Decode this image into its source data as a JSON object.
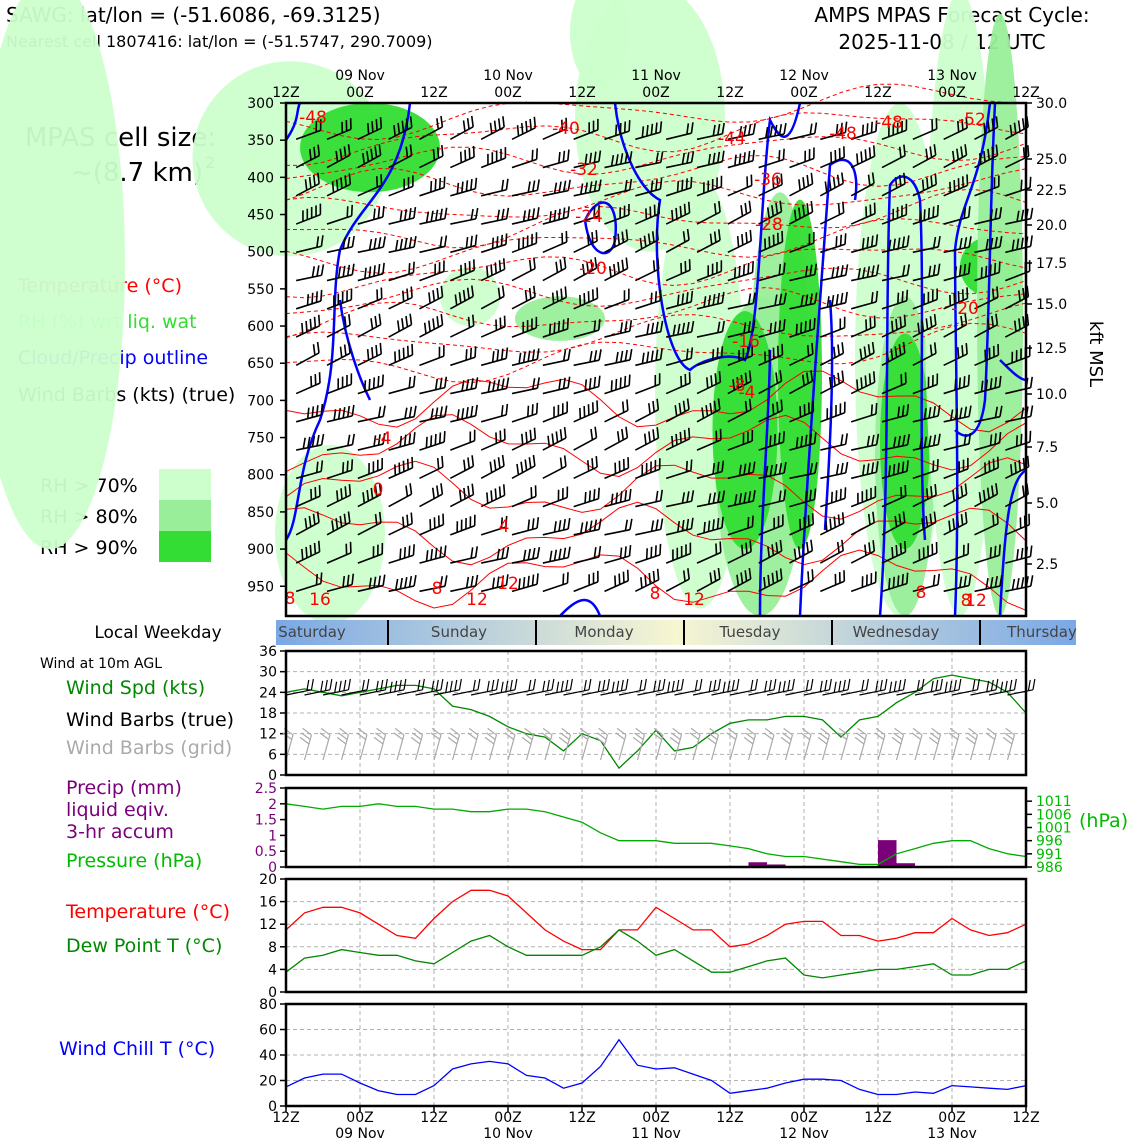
{
  "header": {
    "station_line": "SAWG: lat/lon = (-51.6086, -69.3125)",
    "cell_line": "Nearest cell 1807416: lat/lon = (-51.5747, 290.7009)",
    "cycle_line1": "AMPS MPAS Forecast Cycle:",
    "cycle_line2": "2025-11-08 / 12 UTC"
  },
  "cell_size": {
    "label": "MPAS cell size:",
    "value": "~(8.7 km)",
    "exponent": "2"
  },
  "legend_main": [
    {
      "text": "Temperature (°C)",
      "color": "#ff0000"
    },
    {
      "text": "RH (%) wrt liq. wat",
      "color": "#33dd33"
    },
    {
      "text": "Cloud/Precip outline",
      "color": "#0000ff"
    },
    {
      "text": "Wind Barbs (kts) (true)",
      "color": "#000000"
    }
  ],
  "rh_legend": [
    {
      "text": "RH > 70%",
      "color": "#ccffcc"
    },
    {
      "text": "RH > 80%",
      "color": "#99ee99"
    },
    {
      "text": "RH > 90%",
      "color": "#33dd33"
    }
  ],
  "time_axis": {
    "hours": [
      "12Z",
      "00Z",
      "12Z",
      "00Z",
      "12Z",
      "00Z",
      "12Z",
      "00Z",
      "12Z",
      "00Z",
      "12Z"
    ],
    "dates": [
      "09 Nov",
      "10 Nov",
      "11 Nov",
      "12 Nov",
      "13 Nov"
    ]
  },
  "weekday": {
    "title": "Local Weekday",
    "days": [
      "Saturday",
      "Sunday",
      "Monday",
      "Tuesday",
      "Wednesday",
      "Thursday"
    ]
  },
  "panel_labels": {
    "wind_header": "Wind at 10m AGL",
    "wind_spd": "Wind Spd (kts)",
    "wind_barbs_true": "Wind Barbs (true)",
    "wind_barbs_grid": "Wind Barbs (grid)",
    "precip1": "Precip (mm)",
    "precip2": "liquid eqiv.",
    "precip3": "3-hr accum",
    "pressure": "Pressure (hPa)",
    "pressure_unit": "(hPa)",
    "temp": "Temperature (°C)",
    "dewpoint": "Dew Point T (°C)",
    "windchill": "Wind Chill T (°C)",
    "kft": "kft MSL"
  },
  "chart_data": [
    {
      "type": "heatmap",
      "panel": "cross-section",
      "x_range_hours": [
        0,
        120
      ],
      "y_axis_left": {
        "label": "pressure (hPa)",
        "ticks": [
          300,
          350,
          400,
          450,
          500,
          550,
          600,
          650,
          700,
          750,
          800,
          850,
          900,
          950
        ],
        "range": [
          300,
          990
        ]
      },
      "y_axis_right": {
        "label": "kft MSL",
        "ticks": [
          "30.0",
          "25.0",
          "22.5",
          "20.0",
          "17.5",
          "15.0",
          "12.5",
          "10.0",
          "7.5",
          "5.0",
          "2.5"
        ]
      },
      "temperature_contour_labels": [
        "-48",
        "-40",
        "-44",
        "-48",
        "-48",
        "-52",
        "-32",
        "-36",
        "-24",
        "-28",
        "-20",
        "-20",
        "-16",
        "-4",
        "-8",
        "-4",
        "0",
        "4",
        "8",
        "8",
        "12",
        "16",
        "12",
        "8",
        "12",
        "8",
        "8",
        "12"
      ],
      "legend": [
        "Temperature (°C)",
        "RH (%) wrt liq. wat",
        "Cloud/Precip outline",
        "Wind Barbs (kts) (true)"
      ]
    },
    {
      "type": "line",
      "panel": "wind",
      "series": [
        {
          "name": "Wind Spd (kts)",
          "color": "#008800",
          "x": [
            0,
            3,
            6,
            9,
            12,
            15,
            18,
            21,
            24,
            27,
            30,
            33,
            36,
            39,
            42,
            45,
            48,
            51,
            54,
            57,
            60,
            63,
            66,
            69,
            72,
            75,
            78,
            81,
            84,
            87,
            90,
            93,
            96,
            99,
            102,
            105,
            108,
            111,
            114,
            117,
            120
          ],
          "values": [
            24,
            25,
            24,
            23,
            24,
            25,
            26,
            26,
            25,
            20,
            19,
            17,
            14,
            12,
            11,
            7,
            12,
            10,
            2,
            7,
            13,
            7,
            8,
            12,
            15,
            16,
            16,
            17,
            17,
            16,
            11,
            16,
            17,
            21,
            24,
            28,
            29,
            28,
            27,
            24,
            18
          ]
        }
      ],
      "ylim": [
        0,
        36
      ],
      "yticks": [
        0,
        6,
        12,
        18,
        24,
        30,
        36
      ]
    },
    {
      "type": "bar",
      "panel": "precip/pressure",
      "series": [
        {
          "name": "Precip (mm)",
          "color": "#7a007a",
          "x": [
            75,
            78,
            96,
            99
          ],
          "values": [
            0.15,
            0.08,
            0.85,
            0.12
          ]
        },
        {
          "name": "Pressure (hPa)",
          "color": "#00aa00",
          "x": [
            0,
            3,
            6,
            9,
            12,
            15,
            18,
            21,
            24,
            27,
            30,
            33,
            36,
            39,
            42,
            45,
            48,
            51,
            54,
            57,
            60,
            63,
            66,
            69,
            72,
            75,
            78,
            81,
            84,
            87,
            90,
            93,
            96,
            99,
            102,
            105,
            108,
            111,
            114,
            117,
            120
          ],
          "values": [
            1010,
            1009,
            1008,
            1009,
            1009,
            1010,
            1009,
            1009,
            1008,
            1008,
            1007,
            1007,
            1008,
            1008,
            1007,
            1005,
            1003,
            999,
            996,
            996,
            996,
            995,
            995,
            995,
            994,
            993,
            991,
            990,
            990,
            989,
            988,
            987,
            987,
            991,
            993,
            995,
            996,
            996,
            993,
            991,
            990
          ]
        }
      ],
      "ylim_precip": [
        0,
        2.5
      ],
      "yticks_precip": [
        "0",
        "0.5",
        "1.0",
        "1.5",
        "2.0",
        "2.5"
      ],
      "ylim_pressure": [
        986,
        1016
      ],
      "yticks_pressure": [
        "986",
        "991",
        "996",
        "1001",
        "1006",
        "1011"
      ]
    },
    {
      "type": "line",
      "panel": "temperature",
      "series": [
        {
          "name": "Temperature (°C)",
          "color": "#ff0000",
          "x": [
            0,
            3,
            6,
            9,
            12,
            15,
            18,
            21,
            24,
            27,
            30,
            33,
            36,
            39,
            42,
            45,
            48,
            51,
            54,
            57,
            60,
            63,
            66,
            69,
            72,
            75,
            78,
            81,
            84,
            87,
            90,
            93,
            96,
            99,
            102,
            105,
            108,
            111,
            114,
            117,
            120
          ],
          "values": [
            11,
            14,
            15,
            15,
            14,
            12,
            10,
            9.5,
            13,
            16,
            18,
            18,
            17,
            14,
            11,
            9,
            7.5,
            7.5,
            11,
            11,
            15,
            13,
            11,
            11,
            8,
            8.5,
            10,
            12,
            12.5,
            12.5,
            10,
            10,
            9,
            9.5,
            10.5,
            10.5,
            13,
            11,
            10,
            10.5,
            12
          ]
        },
        {
          "name": "Dew Point T (°C)",
          "color": "#008800",
          "x": [
            0,
            3,
            6,
            9,
            12,
            15,
            18,
            21,
            24,
            27,
            30,
            33,
            36,
            39,
            42,
            45,
            48,
            51,
            54,
            57,
            60,
            63,
            66,
            69,
            72,
            75,
            78,
            81,
            84,
            87,
            90,
            93,
            96,
            99,
            102,
            105,
            108,
            111,
            114,
            117,
            120
          ],
          "values": [
            3.5,
            6,
            6.5,
            7.5,
            7,
            6.5,
            6.5,
            5.5,
            5,
            7,
            9,
            10,
            8,
            6.5,
            6.5,
            6.5,
            6.5,
            8,
            11,
            9,
            6.5,
            7.5,
            5.5,
            3.5,
            3.5,
            4.5,
            5.5,
            6,
            3,
            2.5,
            3,
            3.5,
            4,
            4,
            4.5,
            5,
            3,
            3,
            4,
            4,
            5.5
          ]
        }
      ],
      "ylim": [
        0,
        20
      ],
      "yticks": [
        0,
        4,
        8,
        12,
        16,
        20
      ]
    },
    {
      "type": "line",
      "panel": "windchill",
      "series": [
        {
          "name": "Wind Chill T (°C)",
          "color": "#0000ff",
          "x": [
            0,
            3,
            6,
            9,
            12,
            15,
            18,
            21,
            24,
            27,
            30,
            33,
            36,
            39,
            42,
            45,
            48,
            51,
            54,
            57,
            60,
            63,
            66,
            69,
            72,
            75,
            78,
            81,
            84,
            87,
            90,
            93,
            96,
            99,
            102,
            105,
            108,
            111,
            114,
            117,
            120
          ],
          "values": [
            15,
            22,
            25,
            25,
            18,
            12,
            9,
            9,
            16,
            29,
            33,
            35,
            33,
            24,
            22,
            14,
            18,
            31,
            52,
            32,
            29,
            30,
            25,
            20,
            10,
            12,
            14,
            18,
            21,
            21,
            20,
            13,
            9,
            9,
            11,
            10,
            16,
            15,
            14,
            13,
            16
          ]
        }
      ],
      "ylim": [
        0,
        80
      ],
      "yticks": [
        0,
        20,
        40,
        60,
        80
      ]
    }
  ]
}
